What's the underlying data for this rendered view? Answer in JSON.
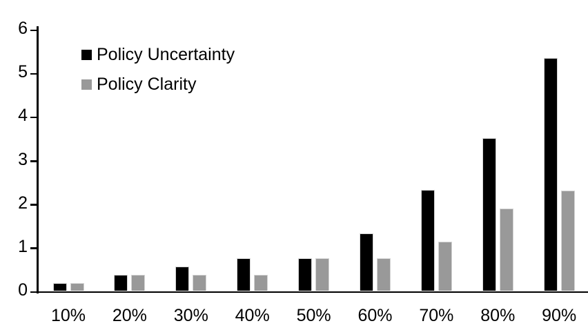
{
  "chart_data": {
    "type": "bar",
    "title": "",
    "xlabel": "",
    "ylabel": "",
    "categories": [
      "10%",
      "20%",
      "30%",
      "40%",
      "50%",
      "60%",
      "70%",
      "80%",
      "90%"
    ],
    "series": [
      {
        "name": "Policy Uncertainty",
        "color": "#000000",
        "values": [
          0.18,
          0.37,
          0.56,
          0.75,
          0.76,
          1.32,
          2.32,
          3.5,
          5.35
        ]
      },
      {
        "name": "Policy Clarity",
        "color": "#999999",
        "values": [
          0.18,
          0.37,
          0.38,
          0.38,
          0.75,
          0.76,
          1.13,
          1.9,
          2.3
        ]
      }
    ],
    "ylim": [
      0,
      6
    ],
    "yticks": [
      "0",
      "1",
      "2",
      "3",
      "4",
      "5",
      "6"
    ],
    "grid": false,
    "legend_position": "inside-top-left",
    "axis_color": "#000000",
    "bar_outline_color": "#d4d4d4",
    "background_color": "#ffffff"
  }
}
